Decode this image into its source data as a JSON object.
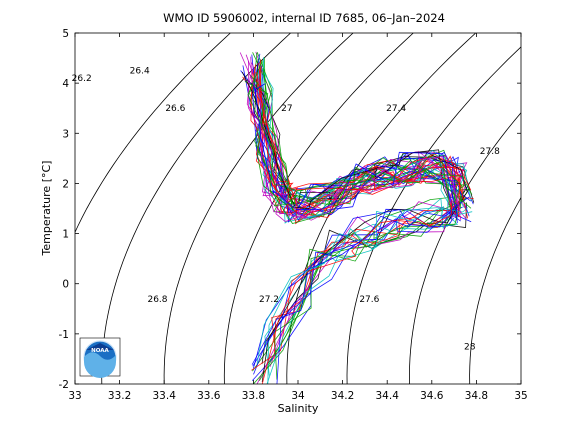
{
  "chart_data": {
    "type": "line",
    "title": "WMO ID 5906002, internal ID 7685, 06–Jan–2024",
    "xlabel": "Salinity",
    "ylabel": "Temperature [°C]",
    "xlim": [
      33,
      35
    ],
    "ylim": [
      -2,
      5
    ],
    "xticks": [
      "33",
      "33.2",
      "33.4",
      "33.6",
      "33.8",
      "34",
      "34.2",
      "34.4",
      "34.6",
      "34.8",
      "35"
    ],
    "yticks": [
      "-2",
      "-1",
      "0",
      "1",
      "2",
      "3",
      "4",
      "5"
    ],
    "grid": false,
    "isopycnal_labels": [
      {
        "text": "26.2",
        "x": 33.03,
        "y": 4.1
      },
      {
        "text": "26.4",
        "x": 33.29,
        "y": 4.25
      },
      {
        "text": "26.6",
        "x": 33.45,
        "y": 3.5
      },
      {
        "text": "27",
        "x": 33.95,
        "y": 3.5
      },
      {
        "text": "27.4",
        "x": 34.44,
        "y": 3.5
      },
      {
        "text": "27.8",
        "x": 34.86,
        "y": 2.65
      },
      {
        "text": "26.8",
        "x": 33.37,
        "y": -0.3
      },
      {
        "text": "27.2",
        "x": 33.87,
        "y": -0.3
      },
      {
        "text": "27.6",
        "x": 34.32,
        "y": -0.3
      },
      {
        "text": "28",
        "x": 34.77,
        "y": -1.25
      }
    ],
    "profile_envelope": {
      "upper_branch_S": [
        33.8,
        33.83,
        33.86,
        33.9,
        33.95,
        34.0,
        34.1,
        34.2,
        34.3,
        34.4,
        34.5,
        34.6,
        34.7,
        34.73
      ],
      "upper_branch_T": [
        4.3,
        3.6,
        2.8,
        2.1,
        1.7,
        1.55,
        1.65,
        1.85,
        2.05,
        2.2,
        2.3,
        2.35,
        2.2,
        1.55
      ],
      "lower_branch_S": [
        33.85,
        33.9,
        34.0,
        34.1,
        34.2,
        34.3,
        34.4,
        34.5,
        34.6,
        34.7,
        34.73
      ],
      "lower_branch_T": [
        -1.7,
        -1.0,
        -0.2,
        0.4,
        0.8,
        1.0,
        1.15,
        1.25,
        1.35,
        1.45,
        1.55
      ]
    },
    "logo": {
      "text": "NOAA"
    }
  }
}
